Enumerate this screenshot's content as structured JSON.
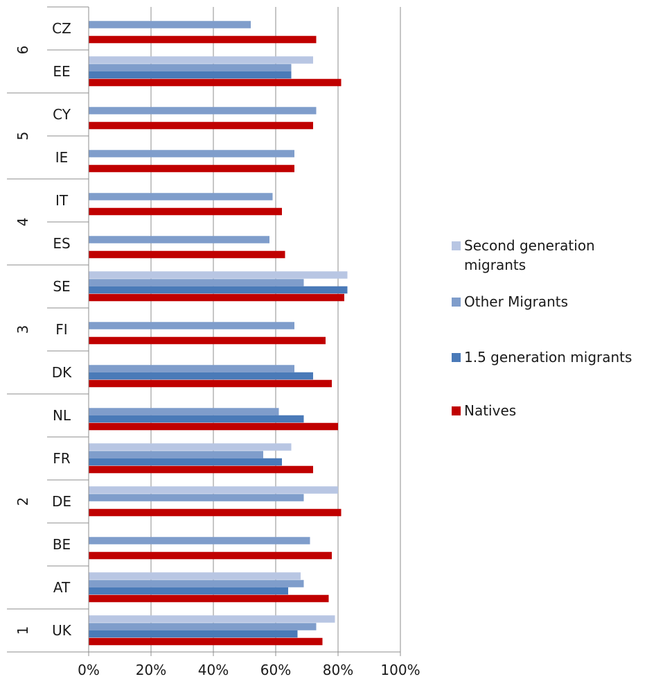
{
  "chart_data": {
    "type": "bar",
    "orientation": "horizontal",
    "title": "",
    "xlabel": "",
    "ylabel": "",
    "xlim": [
      0,
      100
    ],
    "x_ticks": [
      "0%",
      "20%",
      "40%",
      "60%",
      "80%",
      "100%"
    ],
    "grid": "vertical gridlines",
    "legend_position": "right",
    "series": [
      {
        "key": "second",
        "name": "Second generation migrants",
        "color": "#b8c6e3"
      },
      {
        "key": "other",
        "name": "Other Migrants",
        "color": "#7f9dcb"
      },
      {
        "key": "gen15",
        "name": "1.5 generation migrants",
        "color": "#4a7ab8"
      },
      {
        "key": "natives",
        "name": "Natives",
        "color": "#c00000"
      }
    ],
    "groups": [
      {
        "label": "6",
        "countries": [
          "CZ",
          "EE"
        ]
      },
      {
        "label": "5",
        "countries": [
          "CY",
          "IE"
        ]
      },
      {
        "label": "4",
        "countries": [
          "IT",
          "ES"
        ]
      },
      {
        "label": "3",
        "countries": [
          "SE",
          "FI",
          "DK"
        ]
      },
      {
        "label": "2",
        "countries": [
          "NL",
          "FR",
          "DE",
          "BE",
          "AT"
        ]
      },
      {
        "label": "1",
        "countries": [
          "UK"
        ]
      }
    ],
    "data": [
      {
        "country": "CZ",
        "group": "6",
        "second": null,
        "other": 52,
        "gen15": null,
        "natives": 73
      },
      {
        "country": "EE",
        "group": "6",
        "second": 72,
        "other": 65,
        "gen15": 65,
        "natives": 81
      },
      {
        "country": "CY",
        "group": "5",
        "second": null,
        "other": 73,
        "gen15": null,
        "natives": 72
      },
      {
        "country": "IE",
        "group": "5",
        "second": null,
        "other": 66,
        "gen15": null,
        "natives": 66
      },
      {
        "country": "IT",
        "group": "4",
        "second": null,
        "other": 59,
        "gen15": null,
        "natives": 62
      },
      {
        "country": "ES",
        "group": "4",
        "second": null,
        "other": 58,
        "gen15": null,
        "natives": 63
      },
      {
        "country": "SE",
        "group": "3",
        "second": 83,
        "other": 69,
        "gen15": 83,
        "natives": 82
      },
      {
        "country": "FI",
        "group": "3",
        "second": null,
        "other": 66,
        "gen15": null,
        "natives": 76
      },
      {
        "country": "DK",
        "group": "3",
        "second": null,
        "other": 66,
        "gen15": 72,
        "natives": 78
      },
      {
        "country": "NL",
        "group": "2",
        "second": null,
        "other": 61,
        "gen15": 69,
        "natives": 80
      },
      {
        "country": "FR",
        "group": "2",
        "second": 65,
        "other": 56,
        "gen15": 62,
        "natives": 72
      },
      {
        "country": "DE",
        "group": "2",
        "second": 80,
        "other": 69,
        "gen15": null,
        "natives": 81
      },
      {
        "country": "BE",
        "group": "2",
        "second": null,
        "other": 71,
        "gen15": null,
        "natives": 78
      },
      {
        "country": "AT",
        "group": "2",
        "second": 68,
        "other": 69,
        "gen15": 64,
        "natives": 77
      },
      {
        "country": "UK",
        "group": "1",
        "second": 79,
        "other": 73,
        "gen15": 67,
        "natives": 75
      }
    ]
  }
}
